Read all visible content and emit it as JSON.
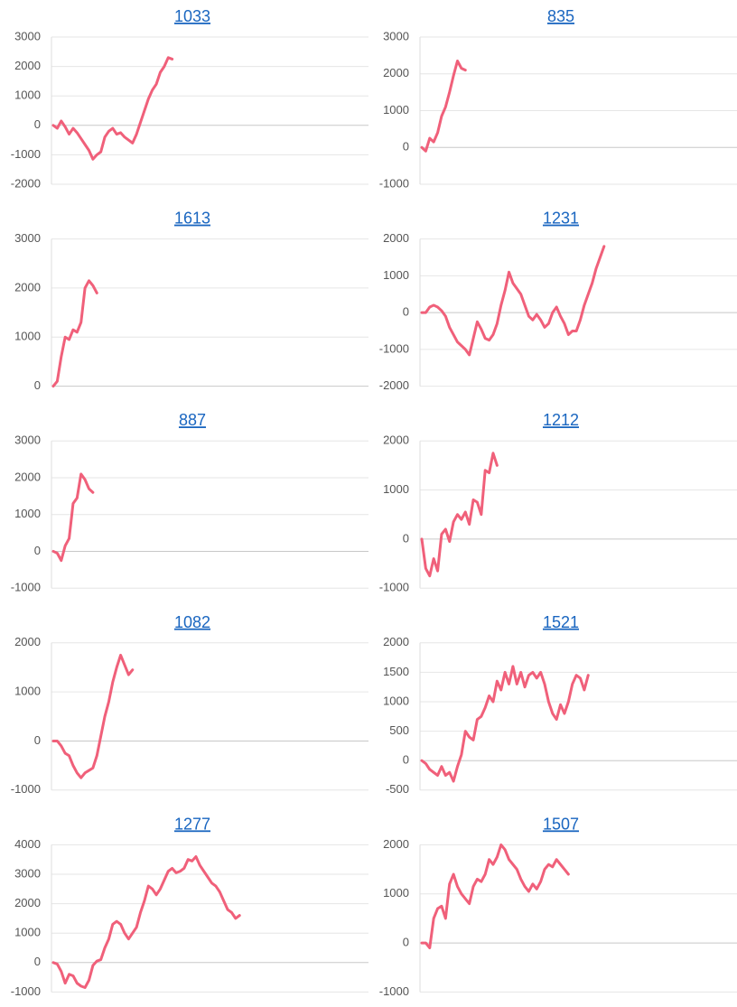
{
  "chart_data": [
    {
      "type": "line",
      "title": "1033",
      "color": "#f0607a",
      "grid": true,
      "ylim": [
        -2000,
        3000
      ],
      "yticks": [
        -2000,
        -1000,
        0,
        1000,
        2000,
        3000
      ],
      "values": [
        0,
        -100,
        150,
        -50,
        -300,
        -100,
        -250,
        -450,
        -650,
        -850,
        -1150,
        -1000,
        -900,
        -400,
        -200,
        -100,
        -300,
        -250,
        -400,
        -500,
        -600,
        -300,
        100,
        500,
        900,
        1200,
        1400,
        1800,
        2000,
        2300,
        2250
      ]
    },
    {
      "type": "line",
      "title": "835",
      "color": "#f0607a",
      "grid": true,
      "ylim": [
        -1000,
        3000
      ],
      "yticks": [
        -1000,
        0,
        1000,
        2000,
        3000
      ],
      "values": [
        0,
        -100,
        250,
        150,
        400,
        850,
        1100,
        1500,
        1950,
        2350,
        2150,
        2100
      ]
    },
    {
      "type": "line",
      "title": "1613",
      "color": "#f0607a",
      "grid": true,
      "ylim": [
        0,
        3000
      ],
      "yticks": [
        0,
        1000,
        2000,
        3000
      ],
      "values": [
        0,
        100,
        600,
        1000,
        950,
        1150,
        1100,
        1300,
        2000,
        2150,
        2050,
        1900
      ]
    },
    {
      "type": "line",
      "title": "1231",
      "color": "#f0607a",
      "grid": true,
      "ylim": [
        -2000,
        2000
      ],
      "yticks": [
        -2000,
        -1000,
        0,
        1000,
        2000
      ],
      "values": [
        0,
        0,
        150,
        200,
        150,
        50,
        -100,
        -400,
        -600,
        -800,
        -900,
        -1000,
        -1150,
        -700,
        -250,
        -450,
        -700,
        -750,
        -600,
        -300,
        200,
        600,
        1100,
        800,
        650,
        500,
        200,
        -100,
        -200,
        -50,
        -200,
        -400,
        -300,
        0,
        150,
        -100,
        -300,
        -600,
        -500,
        -500,
        -200,
        200,
        500,
        800,
        1200,
        1500,
        1800
      ]
    },
    {
      "type": "line",
      "title": "887",
      "color": "#f0607a",
      "grid": true,
      "ylim": [
        -1000,
        3000
      ],
      "yticks": [
        -1000,
        0,
        1000,
        2000,
        3000
      ],
      "values": [
        0,
        -50,
        -250,
        150,
        350,
        1300,
        1450,
        2100,
        1950,
        1700,
        1600
      ]
    },
    {
      "type": "line",
      "title": "1212",
      "color": "#f0607a",
      "grid": true,
      "ylim": [
        -1000,
        2000
      ],
      "yticks": [
        -1000,
        0,
        1000,
        2000
      ],
      "values": [
        0,
        -600,
        -750,
        -400,
        -650,
        100,
        200,
        -50,
        350,
        500,
        400,
        550,
        300,
        800,
        750,
        500,
        1400,
        1350,
        1750,
        1500
      ]
    },
    {
      "type": "line",
      "title": "1082",
      "color": "#f0607a",
      "grid": true,
      "ylim": [
        -1000,
        2000
      ],
      "yticks": [
        -1000,
        0,
        1000,
        2000
      ],
      "values": [
        0,
        0,
        -100,
        -250,
        -300,
        -500,
        -650,
        -750,
        -650,
        -600,
        -550,
        -300,
        100,
        500,
        800,
        1200,
        1500,
        1750,
        1550,
        1350,
        1450
      ]
    },
    {
      "type": "line",
      "title": "1521",
      "color": "#f0607a",
      "grid": true,
      "ylim": [
        -500,
        2000
      ],
      "yticks": [
        -500,
        0,
        500,
        1000,
        1500,
        2000
      ],
      "values": [
        0,
        -50,
        -150,
        -200,
        -250,
        -100,
        -250,
        -200,
        -350,
        -100,
        100,
        500,
        400,
        350,
        700,
        750,
        900,
        1100,
        1000,
        1350,
        1200,
        1500,
        1300,
        1600,
        1300,
        1500,
        1250,
        1450,
        1500,
        1400,
        1500,
        1300,
        1000,
        800,
        700,
        950,
        800,
        1000,
        1300,
        1450,
        1400,
        1200,
        1450
      ]
    },
    {
      "type": "line",
      "title": "1277",
      "color": "#f0607a",
      "grid": true,
      "ylim": [
        -1000,
        4000
      ],
      "yticks": [
        -1000,
        0,
        1000,
        2000,
        3000,
        4000
      ],
      "values": [
        0,
        -50,
        -300,
        -700,
        -400,
        -450,
        -700,
        -800,
        -850,
        -600,
        -100,
        50,
        100,
        500,
        800,
        1300,
        1400,
        1300,
        1000,
        800,
        1000,
        1200,
        1700,
        2100,
        2600,
        2500,
        2300,
        2500,
        2800,
        3100,
        3200,
        3050,
        3100,
        3200,
        3500,
        3450,
        3600,
        3300,
        3100,
        2900,
        2700,
        2600,
        2400,
        2100,
        1800,
        1700,
        1500,
        1600
      ]
    },
    {
      "type": "line",
      "title": "1507",
      "color": "#f0607a",
      "grid": true,
      "ylim": [
        -1000,
        2000
      ],
      "yticks": [
        -1000,
        0,
        1000,
        2000
      ],
      "values": [
        0,
        0,
        -100,
        500,
        700,
        750,
        500,
        1200,
        1400,
        1150,
        1000,
        900,
        800,
        1150,
        1300,
        1250,
        1400,
        1700,
        1600,
        1750,
        2000,
        1900,
        1700,
        1600,
        1500,
        1300,
        1150,
        1050,
        1200,
        1100,
        1250,
        1500,
        1600,
        1550,
        1700,
        1600,
        1500,
        1400
      ]
    }
  ]
}
